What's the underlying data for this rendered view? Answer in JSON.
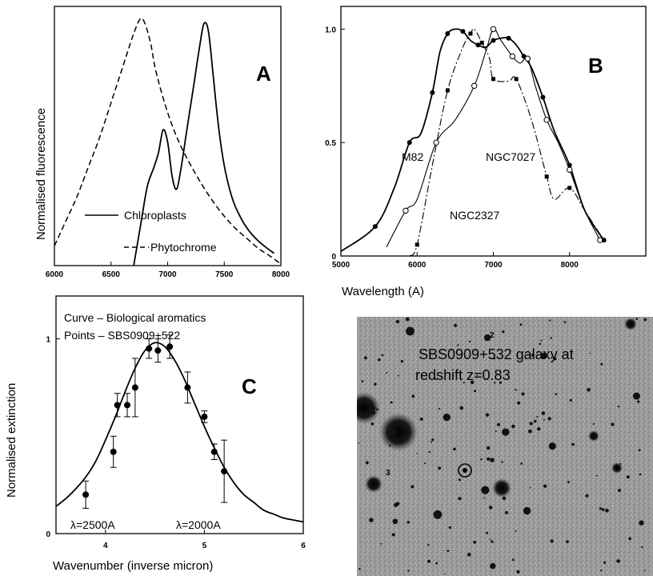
{
  "chart_data": [
    {
      "panel": "A",
      "type": "line",
      "ylabel": "Normalised  fluorescence",
      "xlabel": "",
      "xlim": [
        6000,
        8000
      ],
      "ylim": [
        0,
        1.05
      ],
      "x_ticks": [
        "6000",
        "6500",
        "7000",
        "7500",
        "8000"
      ],
      "legend": "bottom-left",
      "series": [
        {
          "name": "Chloroplasts",
          "style": "solid",
          "x": [
            6700,
            6760,
            6820,
            6880,
            6920,
            6960,
            7000,
            7040,
            7080,
            7120,
            7160,
            7200,
            7240,
            7280,
            7320,
            7360,
            7400,
            7440,
            7480,
            7520,
            7580,
            7650,
            7720,
            7800,
            7880,
            7940
          ],
          "y": [
            0.0,
            0.16,
            0.32,
            0.4,
            0.46,
            0.55,
            0.5,
            0.36,
            0.31,
            0.4,
            0.52,
            0.64,
            0.76,
            0.88,
            0.98,
            0.95,
            0.78,
            0.6,
            0.46,
            0.36,
            0.26,
            0.19,
            0.14,
            0.1,
            0.07,
            0.05
          ]
        },
        {
          "name": "Phytochrome",
          "style": "dashed",
          "x": [
            6000,
            6100,
            6200,
            6300,
            6400,
            6500,
            6600,
            6700,
            6760,
            6800,
            6850,
            6900,
            7000,
            7100,
            7200,
            7300,
            7400,
            7500,
            7600,
            7700,
            7800,
            7900,
            7990
          ],
          "y": [
            0.08,
            0.18,
            0.28,
            0.4,
            0.52,
            0.66,
            0.8,
            0.94,
            1.0,
            0.98,
            0.9,
            0.78,
            0.62,
            0.5,
            0.41,
            0.33,
            0.26,
            0.2,
            0.15,
            0.11,
            0.07,
            0.04,
            0.01
          ]
        }
      ],
      "legend_entries": [
        "Chloroplasts",
        "Phytochrome"
      ]
    },
    {
      "panel": "B",
      "type": "line",
      "xlabel": "Wavelength (A)",
      "ylabel": "",
      "xlim": [
        5000,
        9000
      ],
      "ylim": [
        0,
        1.1
      ],
      "x_ticks": [
        "5000",
        "6000",
        "7000",
        "8000"
      ],
      "y_ticks": [
        {
          "value": 0,
          "label": "0"
        },
        {
          "value": 0.5,
          "label": "0.5"
        },
        {
          "value": 1.0,
          "label": "1.0"
        }
      ],
      "annotations": [
        "M82",
        "NGC7027",
        "NGC2327"
      ],
      "series": [
        {
          "name": "M82",
          "style": "solid-filled-dots",
          "x": [
            5000,
            5450,
            5700,
            5900,
            6050,
            6200,
            6300,
            6400,
            6500,
            6600,
            6700,
            6800,
            6900,
            7000,
            7100,
            7200,
            7300,
            7400,
            7500,
            7650,
            7800,
            8000,
            8200,
            8450
          ],
          "y": [
            0.02,
            0.13,
            0.3,
            0.5,
            0.54,
            0.72,
            0.9,
            0.98,
            1.0,
            0.99,
            0.95,
            0.93,
            0.92,
            0.95,
            0.96,
            0.96,
            0.93,
            0.88,
            0.83,
            0.7,
            0.55,
            0.4,
            0.2,
            0.07
          ]
        },
        {
          "name": "NGC7027",
          "style": "solid-open-dots",
          "x": [
            5600,
            5850,
            6000,
            6250,
            6500,
            6750,
            6900,
            7000,
            7100,
            7250,
            7350,
            7450,
            7550,
            7700,
            7850,
            8000,
            8200,
            8400
          ],
          "y": [
            0.04,
            0.2,
            0.25,
            0.5,
            0.6,
            0.75,
            0.9,
            1.0,
            0.95,
            0.88,
            0.85,
            0.87,
            0.75,
            0.6,
            0.5,
            0.38,
            0.2,
            0.07
          ]
        },
        {
          "name": "NGC2327",
          "style": "dash-dot-squares",
          "x": [
            5900,
            6000,
            6200,
            6400,
            6600,
            6700,
            6750,
            6850,
            6950,
            7000,
            7200,
            7300,
            7500,
            7700,
            7800,
            8000,
            8200,
            8450
          ],
          "y": [
            0.0,
            0.05,
            0.4,
            0.73,
            0.92,
            0.98,
            1.0,
            0.94,
            0.87,
            0.78,
            0.77,
            0.78,
            0.6,
            0.35,
            0.25,
            0.3,
            0.2,
            0.07
          ]
        }
      ]
    },
    {
      "panel": "C",
      "type": "scatter",
      "xlabel": "Wavenumber (inverse micron)",
      "ylabel": "Normalised  extinction",
      "xlim": [
        3.5,
        6
      ],
      "ylim": [
        0,
        1.22
      ],
      "x_ticks": [
        "4",
        "5",
        "6"
      ],
      "y_ticks": [
        {
          "value": 0,
          "label": "0"
        },
        {
          "value": 1,
          "label": "1"
        }
      ],
      "annotations": [
        "Curve – Biological aromatics",
        "Points – SBS0909+522",
        "λ=2500A",
        "λ=2000A"
      ],
      "curve": {
        "name": "Biological aromatics",
        "x": [
          3.5,
          3.6,
          3.7,
          3.8,
          3.9,
          4.0,
          4.1,
          4.2,
          4.3,
          4.4,
          4.5,
          4.6,
          4.7,
          4.8,
          4.9,
          5.0,
          5.1,
          5.2,
          5.3,
          5.4,
          5.5,
          5.6,
          5.7,
          5.8,
          5.9,
          6.0
        ],
        "y": [
          0.14,
          0.18,
          0.23,
          0.29,
          0.37,
          0.48,
          0.6,
          0.73,
          0.85,
          0.94,
          0.98,
          0.96,
          0.89,
          0.79,
          0.67,
          0.55,
          0.44,
          0.34,
          0.26,
          0.2,
          0.16,
          0.12,
          0.1,
          0.08,
          0.07,
          0.06
        ]
      },
      "points": {
        "name": "SBS0909+522",
        "x": [
          3.8,
          4.08,
          4.12,
          4.22,
          4.3,
          4.44,
          4.53,
          4.65,
          4.83,
          5.0,
          5.1,
          5.2
        ],
        "y": [
          0.2,
          0.42,
          0.66,
          0.66,
          0.75,
          0.95,
          0.94,
          0.96,
          0.75,
          0.6,
          0.42,
          0.32
        ],
        "err": [
          0.07,
          0.08,
          0.06,
          0.06,
          0.15,
          0.05,
          0.06,
          0.06,
          0.08,
          0.03,
          0.04,
          0.16
        ]
      }
    }
  ],
  "panels": {
    "A": {
      "letter": "A"
    },
    "B": {
      "letter": "B"
    },
    "C": {
      "letter": "C"
    }
  },
  "photo": {
    "caption_line1": "SBS0909+532 galaxy at",
    "caption_line2": "redshift z=0.83",
    "marker_label": "2",
    "side_label": "3"
  }
}
